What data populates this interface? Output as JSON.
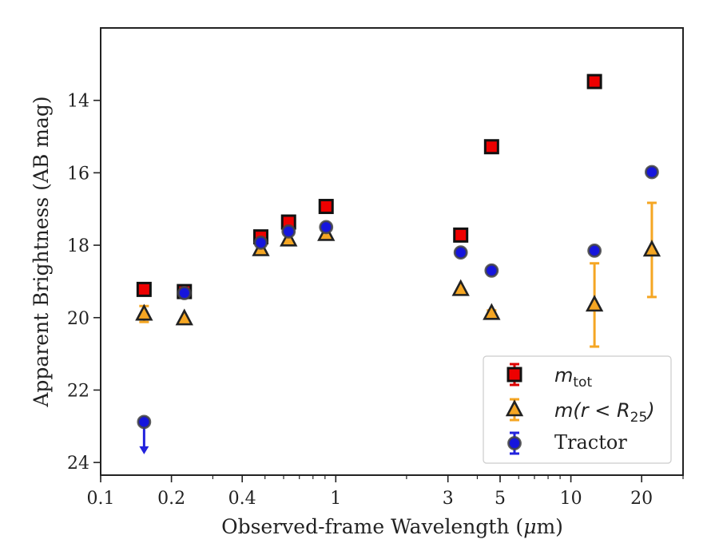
{
  "chart_data": {
    "type": "scatter",
    "xlabel_prefix": "Observed-frame Wavelength (",
    "xlabel_mu": "μ",
    "xlabel_suffix": "m)",
    "ylabel": "Apparent Brightness (AB mag)",
    "x_scale": "log",
    "xlim": [
      0.1,
      30
    ],
    "ylim": [
      24.35,
      12.0
    ],
    "y_inverted": true,
    "x_ticks": [
      {
        "value": 0.1,
        "label": "0.1"
      },
      {
        "value": 0.2,
        "label": "0.2"
      },
      {
        "value": 0.4,
        "label": "0.4"
      },
      {
        "value": 1,
        "label": "1"
      },
      {
        "value": 3,
        "label": "3"
      },
      {
        "value": 5,
        "label": "5"
      },
      {
        "value": 10,
        "label": "10"
      },
      {
        "value": 20,
        "label": "20"
      }
    ],
    "y_ticks": [
      {
        "value": 14,
        "label": "14"
      },
      {
        "value": 16,
        "label": "16"
      },
      {
        "value": 18,
        "label": "18"
      },
      {
        "value": 20,
        "label": "20"
      },
      {
        "value": 22,
        "label": "22"
      },
      {
        "value": 24,
        "label": "24"
      }
    ],
    "legend": {
      "position": "lower-right"
    },
    "series": [
      {
        "id": "mtot",
        "legend_main": "m",
        "legend_sub": "tot",
        "marker": "square",
        "fill": "#ee0000",
        "edge": "#111111",
        "errcolor": "#dd0000",
        "points": [
          {
            "x": 0.153,
            "y": 19.22
          },
          {
            "x": 0.227,
            "y": 19.28
          },
          {
            "x": 0.48,
            "y": 17.77
          },
          {
            "x": 0.63,
            "y": 17.36
          },
          {
            "x": 0.91,
            "y": 16.93
          },
          {
            "x": 3.4,
            "y": 17.72
          },
          {
            "x": 4.6,
            "y": 15.28
          },
          {
            "x": 12.6,
            "y": 13.48
          }
        ]
      },
      {
        "id": "mr25",
        "legend_main": "m(r < R",
        "legend_sub": "25",
        "legend_end": ")",
        "marker": "triangle",
        "fill": "#f5a623",
        "edge": "#222222",
        "errcolor": "#f5a623",
        "points": [
          {
            "x": 0.153,
            "y": 19.9,
            "err": 0.22
          },
          {
            "x": 0.227,
            "y": 20.03
          },
          {
            "x": 0.48,
            "y": 18.12
          },
          {
            "x": 0.63,
            "y": 17.85
          },
          {
            "x": 0.91,
            "y": 17.7
          },
          {
            "x": 3.4,
            "y": 19.22
          },
          {
            "x": 4.6,
            "y": 19.88,
            "err": 0.08
          },
          {
            "x": 12.6,
            "y": 19.65,
            "err": 1.15
          },
          {
            "x": 22.1,
            "y": 18.13,
            "err": 1.3
          }
        ]
      },
      {
        "id": "tractor",
        "legend_main": "Tractor",
        "marker": "circle",
        "fill": "#1515dd",
        "edge": "#444444",
        "errcolor": "#2222dd",
        "points": [
          {
            "x": 0.153,
            "y": 22.88,
            "upper_limit": true
          },
          {
            "x": 0.227,
            "y": 19.32
          },
          {
            "x": 0.48,
            "y": 17.93
          },
          {
            "x": 0.63,
            "y": 17.62
          },
          {
            "x": 0.91,
            "y": 17.5
          },
          {
            "x": 3.4,
            "y": 18.2
          },
          {
            "x": 4.6,
            "y": 18.7
          },
          {
            "x": 12.6,
            "y": 18.15
          },
          {
            "x": 22.1,
            "y": 15.98
          }
        ]
      }
    ]
  }
}
